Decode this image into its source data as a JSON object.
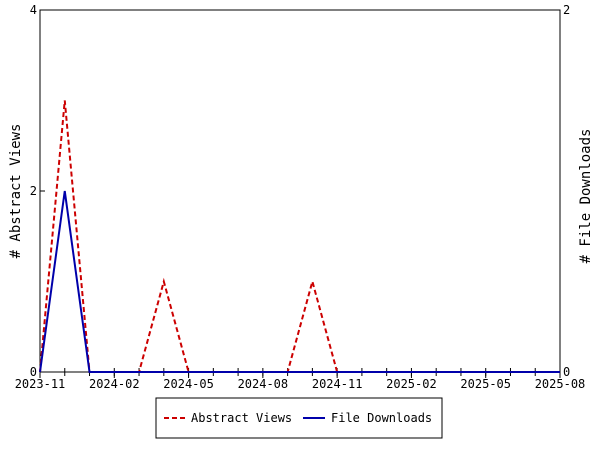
{
  "chart_data": {
    "type": "line",
    "x_ticks": [
      "2023-11",
      "2024-02",
      "2024-05",
      "2024-08",
      "2024-11",
      "2025-02",
      "2025-05",
      "2025-08"
    ],
    "y_left": {
      "label": "# Abstract Views",
      "ticks": [
        "0",
        "2",
        "4"
      ],
      "ylim": [
        0,
        4
      ]
    },
    "y_right": {
      "label": "# File Downloads",
      "ticks": [
        "0",
        "2"
      ],
      "ylim": [
        0,
        2
      ]
    },
    "x_range": [
      "2023-11",
      "2025-08"
    ],
    "series": [
      {
        "name": "Abstract Views",
        "axis": "left",
        "color": "#cc0000",
        "dash": true,
        "x": [
          "2023-11",
          "2023-12",
          "2024-01",
          "2024-02",
          "2024-03",
          "2024-04",
          "2024-05",
          "2024-06",
          "2024-07",
          "2024-08",
          "2024-09",
          "2024-10",
          "2024-11",
          "2024-12",
          "2025-01",
          "2025-02",
          "2025-03",
          "2025-04",
          "2025-05",
          "2025-06",
          "2025-07",
          "2025-08"
        ],
        "values": [
          0,
          3,
          0,
          0,
          0,
          1,
          0,
          0,
          0,
          0,
          0,
          1,
          0,
          0,
          0,
          0,
          0,
          0,
          0,
          0,
          0,
          0
        ]
      },
      {
        "name": "File Downloads",
        "axis": "right",
        "color": "#0000aa",
        "dash": false,
        "x": [
          "2023-11",
          "2023-12",
          "2024-01",
          "2024-02",
          "2024-03",
          "2024-04",
          "2024-05",
          "2024-06",
          "2024-07",
          "2024-08",
          "2024-09",
          "2024-10",
          "2024-11",
          "2024-12",
          "2025-01",
          "2025-02",
          "2025-03",
          "2025-04",
          "2025-05",
          "2025-06",
          "2025-07",
          "2025-08"
        ],
        "values": [
          0,
          1,
          0,
          0,
          0,
          0,
          0,
          0,
          0,
          0,
          0,
          0,
          0,
          0,
          0,
          0,
          0,
          0,
          0,
          0,
          0,
          0
        ]
      }
    ],
    "legend_position": "bottom-center"
  }
}
